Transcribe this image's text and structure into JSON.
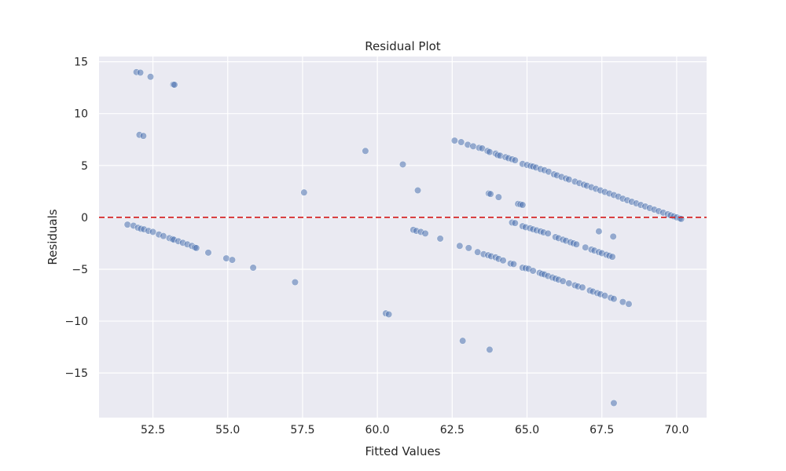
{
  "chart_data": {
    "type": "scatter",
    "title": "Residual Plot",
    "xlabel": "Fitted Values",
    "ylabel": "Residuals",
    "xlim": [
      50.7,
      71.0
    ],
    "ylim": [
      -19.3,
      15.5
    ],
    "xticks": [
      52.5,
      55.0,
      57.5,
      60.0,
      62.5,
      65.0,
      67.5,
      70.0
    ],
    "xtick_labels": [
      "52.5",
      "55.0",
      "57.5",
      "60.0",
      "62.5",
      "65.0",
      "67.5",
      "70.0"
    ],
    "yticks": [
      -15,
      -10,
      -5,
      0,
      5,
      10,
      15
    ],
    "ytick_labels": [
      "−15",
      "−10",
      "−5",
      "0",
      "5",
      "10",
      "15"
    ],
    "grid": true,
    "reference_line": {
      "y": 0,
      "color": "#d62728",
      "style": "dashed"
    },
    "colors": {
      "background": "#eaeaf2",
      "grid": "#ffffff",
      "point": "#4c72b0"
    },
    "points": [
      [
        51.95,
        14.0
      ],
      [
        52.08,
        13.95
      ],
      [
        52.42,
        13.55
      ],
      [
        53.18,
        12.8
      ],
      [
        53.22,
        12.78
      ],
      [
        52.05,
        7.95
      ],
      [
        52.18,
        7.85
      ],
      [
        59.6,
        6.4
      ],
      [
        60.85,
        5.1
      ],
      [
        61.35,
        2.6
      ],
      [
        57.55,
        2.4
      ],
      [
        62.58,
        7.4
      ],
      [
        62.8,
        7.25
      ],
      [
        63.02,
        7.0
      ],
      [
        63.2,
        6.85
      ],
      [
        63.4,
        6.7
      ],
      [
        63.5,
        6.65
      ],
      [
        63.68,
        6.4
      ],
      [
        63.75,
        6.3
      ],
      [
        63.95,
        6.15
      ],
      [
        64.02,
        6.0
      ],
      [
        64.1,
        5.95
      ],
      [
        64.28,
        5.8
      ],
      [
        64.38,
        5.7
      ],
      [
        64.5,
        5.6
      ],
      [
        64.6,
        5.5
      ],
      [
        64.85,
        5.15
      ],
      [
        65.0,
        5.05
      ],
      [
        65.12,
        4.95
      ],
      [
        65.2,
        4.9
      ],
      [
        65.3,
        4.8
      ],
      [
        65.45,
        4.65
      ],
      [
        65.58,
        4.55
      ],
      [
        65.72,
        4.4
      ],
      [
        65.9,
        4.15
      ],
      [
        66.0,
        4.05
      ],
      [
        66.15,
        3.9
      ],
      [
        66.3,
        3.75
      ],
      [
        66.4,
        3.65
      ],
      [
        66.6,
        3.45
      ],
      [
        66.75,
        3.3
      ],
      [
        66.9,
        3.15
      ],
      [
        67.0,
        3.05
      ],
      [
        67.15,
        2.9
      ],
      [
        67.3,
        2.75
      ],
      [
        67.45,
        2.6
      ],
      [
        67.6,
        2.45
      ],
      [
        67.75,
        2.3
      ],
      [
        67.9,
        2.15
      ],
      [
        68.05,
        2.0
      ],
      [
        68.2,
        1.8
      ],
      [
        68.35,
        1.65
      ],
      [
        68.5,
        1.5
      ],
      [
        68.65,
        1.35
      ],
      [
        68.8,
        1.2
      ],
      [
        68.95,
        1.05
      ],
      [
        69.1,
        0.9
      ],
      [
        69.25,
        0.75
      ],
      [
        69.4,
        0.6
      ],
      [
        69.55,
        0.45
      ],
      [
        69.7,
        0.3
      ],
      [
        69.8,
        0.2
      ],
      [
        69.9,
        0.1
      ],
      [
        70.0,
        0.0
      ],
      [
        70.1,
        -0.1
      ],
      [
        70.15,
        -0.15
      ],
      [
        63.72,
        2.3
      ],
      [
        63.78,
        2.25
      ],
      [
        64.05,
        1.95
      ],
      [
        64.7,
        1.3
      ],
      [
        64.78,
        1.25
      ],
      [
        64.85,
        1.2
      ],
      [
        51.65,
        -0.7
      ],
      [
        51.85,
        -0.8
      ],
      [
        52.0,
        -1.0
      ],
      [
        52.1,
        -1.1
      ],
      [
        52.2,
        -1.15
      ],
      [
        52.35,
        -1.3
      ],
      [
        52.5,
        -1.4
      ],
      [
        52.7,
        -1.65
      ],
      [
        52.85,
        -1.8
      ],
      [
        53.05,
        -2.0
      ],
      [
        53.15,
        -2.1
      ],
      [
        53.2,
        -2.15
      ],
      [
        53.35,
        -2.3
      ],
      [
        53.5,
        -2.45
      ],
      [
        53.65,
        -2.6
      ],
      [
        53.8,
        -2.75
      ],
      [
        53.9,
        -2.9
      ],
      [
        53.95,
        -2.95
      ],
      [
        54.35,
        -3.4
      ],
      [
        54.95,
        -3.95
      ],
      [
        55.15,
        -4.1
      ],
      [
        55.85,
        -4.85
      ],
      [
        57.25,
        -6.25
      ],
      [
        61.2,
        -1.2
      ],
      [
        61.3,
        -1.3
      ],
      [
        61.45,
        -1.4
      ],
      [
        61.6,
        -1.55
      ],
      [
        62.1,
        -2.05
      ],
      [
        64.5,
        -0.5
      ],
      [
        64.6,
        -0.55
      ],
      [
        64.85,
        -0.85
      ],
      [
        64.95,
        -0.95
      ],
      [
        65.1,
        -1.05
      ],
      [
        65.2,
        -1.15
      ],
      [
        65.32,
        -1.25
      ],
      [
        65.45,
        -1.35
      ],
      [
        65.55,
        -1.45
      ],
      [
        65.7,
        -1.55
      ],
      [
        65.95,
        -1.9
      ],
      [
        66.05,
        -2.0
      ],
      [
        66.2,
        -2.15
      ],
      [
        66.3,
        -2.25
      ],
      [
        66.45,
        -2.4
      ],
      [
        66.55,
        -2.5
      ],
      [
        66.65,
        -2.6
      ],
      [
        66.95,
        -2.9
      ],
      [
        67.15,
        -3.1
      ],
      [
        67.25,
        -3.2
      ],
      [
        67.4,
        -3.35
      ],
      [
        67.5,
        -3.45
      ],
      [
        67.65,
        -3.6
      ],
      [
        67.75,
        -3.7
      ],
      [
        67.85,
        -3.8
      ],
      [
        67.4,
        -1.35
      ],
      [
        67.88,
        -1.85
      ],
      [
        62.75,
        -2.75
      ],
      [
        63.05,
        -2.95
      ],
      [
        63.35,
        -3.35
      ],
      [
        63.55,
        -3.55
      ],
      [
        63.7,
        -3.65
      ],
      [
        63.8,
        -3.75
      ],
      [
        63.95,
        -3.85
      ],
      [
        64.05,
        -4.0
      ],
      [
        64.2,
        -4.15
      ],
      [
        64.45,
        -4.45
      ],
      [
        64.55,
        -4.5
      ],
      [
        64.85,
        -4.85
      ],
      [
        64.95,
        -4.9
      ],
      [
        65.05,
        -4.95
      ],
      [
        65.2,
        -5.15
      ],
      [
        65.42,
        -5.35
      ],
      [
        65.5,
        -5.45
      ],
      [
        65.58,
        -5.5
      ],
      [
        65.7,
        -5.65
      ],
      [
        65.85,
        -5.8
      ],
      [
        65.95,
        -5.9
      ],
      [
        66.05,
        -6.0
      ],
      [
        66.2,
        -6.15
      ],
      [
        66.4,
        -6.35
      ],
      [
        66.6,
        -6.55
      ],
      [
        66.7,
        -6.65
      ],
      [
        66.85,
        -6.75
      ],
      [
        67.1,
        -7.05
      ],
      [
        67.2,
        -7.15
      ],
      [
        67.35,
        -7.3
      ],
      [
        67.45,
        -7.4
      ],
      [
        67.6,
        -7.55
      ],
      [
        67.8,
        -7.75
      ],
      [
        67.9,
        -7.85
      ],
      [
        68.2,
        -8.15
      ],
      [
        68.4,
        -8.35
      ],
      [
        60.28,
        -9.25
      ],
      [
        60.38,
        -9.35
      ],
      [
        62.85,
        -11.9
      ],
      [
        63.75,
        -12.75
      ],
      [
        67.9,
        -17.9
      ]
    ]
  }
}
